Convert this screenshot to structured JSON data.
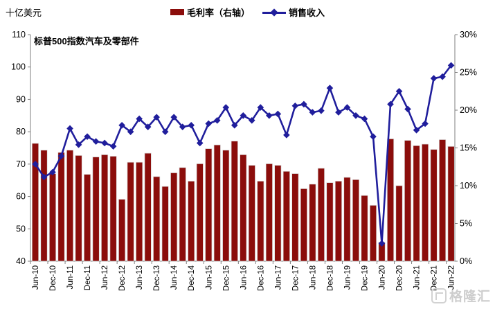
{
  "unit_label": "十亿美元",
  "annotation": "标普500指数汽车及零部件",
  "watermark": "格隆汇",
  "legend": {
    "bar_label": "毛利率（右轴）",
    "line_label": "销售收入"
  },
  "colors": {
    "bar": "#8B0D0B",
    "bar_edge": "#d9d9d9",
    "line": "#201E9C",
    "axis": "#7f7f7f",
    "text": "#000000",
    "watermark": "#cdcdcd"
  },
  "chart_data": {
    "type": "bar+line combo",
    "title": "",
    "annotation": "标普500指数汽车及零部件",
    "categories": [
      "Jun-10",
      "Sep-10",
      "Dec-10",
      "Mar-11",
      "Jun-11",
      "Sep-11",
      "Dec-11",
      "Mar-12",
      "Jun-12",
      "Sep-12",
      "Dec-12",
      "Mar-13",
      "Jun-13",
      "Sep-13",
      "Dec-13",
      "Mar-14",
      "Jun-14",
      "Sep-14",
      "Dec-14",
      "Mar-15",
      "Jun-15",
      "Sep-15",
      "Dec-15",
      "Mar-16",
      "Jun-16",
      "Sep-16",
      "Dec-16",
      "Mar-17",
      "Jun-17",
      "Sep-17",
      "Dec-17",
      "Mar-18",
      "Jun-18",
      "Sep-18",
      "Dec-18",
      "Mar-19",
      "Jun-19",
      "Sep-19",
      "Dec-19",
      "Mar-20",
      "Jun-20",
      "Sep-20",
      "Dec-20",
      "Mar-21",
      "Jun-21",
      "Sep-21",
      "Dec-21",
      "Mar-22",
      "Jun-22"
    ],
    "x_tick_labels": [
      "Jun-10",
      "Dec-10",
      "Jun-11",
      "Dec-11",
      "Jun-12",
      "Dec-12",
      "Jun-13",
      "Dec-13",
      "Jun-14",
      "Dec-14",
      "Jun-15",
      "Dec-15",
      "Jun-16",
      "Dec-16",
      "Jun-17",
      "Dec-17",
      "Jun-18",
      "Dec-18",
      "Jun-19",
      "Dec-19",
      "Jun-20",
      "Dec-20",
      "Jun-21",
      "Dec-21",
      "Jun-22"
    ],
    "series": [
      {
        "name": "毛利率（右轴）",
        "type": "bar",
        "axis": "right",
        "unit": "%",
        "values": [
          15.6,
          14.7,
          11.6,
          14.4,
          14.7,
          14.0,
          11.5,
          13.8,
          14.1,
          13.9,
          8.2,
          13.1,
          13.1,
          14.3,
          11.2,
          9.9,
          11.7,
          12.4,
          10.6,
          12.9,
          14.9,
          15.4,
          14.7,
          15.9,
          14.1,
          12.7,
          10.6,
          12.9,
          12.7,
          11.9,
          11.6,
          9.6,
          10.2,
          12.3,
          10.4,
          10.6,
          11.1,
          10.8,
          8.7,
          7.4,
          2.5,
          16.2,
          10.0,
          16.0,
          15.3,
          15.5,
          14.8,
          16.1,
          15.2
        ]
      },
      {
        "name": "销售收入",
        "type": "line",
        "axis": "left",
        "unit": "十亿美元",
        "values": [
          70,
          66,
          67.5,
          72.5,
          81,
          76,
          78.5,
          77,
          76.5,
          75.5,
          82,
          80,
          84,
          81.5,
          84.5,
          80,
          84.5,
          81.5,
          82,
          76.5,
          82.5,
          83.5,
          87.5,
          82,
          85,
          83.5,
          87.5,
          85,
          85.5,
          79,
          88,
          88.5,
          86,
          86.5,
          93.5,
          86,
          87.5,
          85,
          84,
          78.5,
          45.5,
          88.5,
          92.5,
          87,
          80.5,
          82.5,
          96.5,
          97,
          100.5
        ]
      }
    ],
    "left_axis": {
      "min": 40,
      "max": 110,
      "step": 10,
      "tick_labels": [
        "40",
        "50",
        "60",
        "70",
        "80",
        "90",
        "100",
        "110"
      ]
    },
    "right_axis": {
      "min": 0,
      "max": 30,
      "step": 5,
      "tick_labels": [
        "0%",
        "5%",
        "10%",
        "15%",
        "20%",
        "25%",
        "30%"
      ]
    },
    "legend_position": "top-center",
    "grid": false
  }
}
